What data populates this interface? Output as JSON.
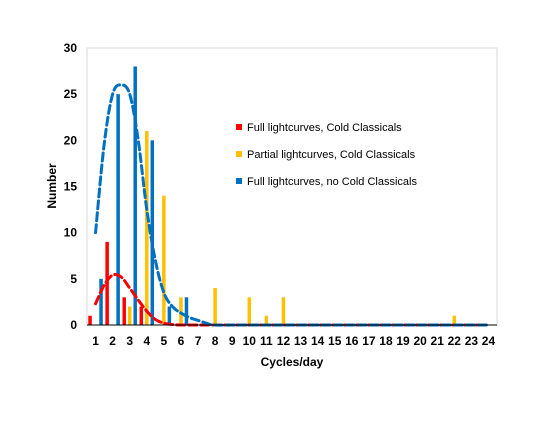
{
  "chart_data": {
    "type": "bar",
    "title": "",
    "xlabel": "Cycles/day",
    "ylabel": "Number",
    "ylim": [
      0,
      30
    ],
    "yticks": [
      0,
      5,
      10,
      15,
      20,
      25,
      30
    ],
    "categories": [
      "1",
      "2",
      "3",
      "4",
      "5",
      "6",
      "7",
      "8",
      "9",
      "10",
      "11",
      "12",
      "13",
      "14",
      "15",
      "16",
      "17",
      "18",
      "19",
      "20",
      "21",
      "22",
      "23",
      "24"
    ],
    "grid": false,
    "legend_position": "center-right",
    "series": [
      {
        "name": "Full lightcurves, Cold Classicals",
        "color": "#ff0000",
        "values": [
          1,
          9,
          3,
          2,
          0,
          0,
          0,
          0,
          0,
          0,
          0,
          0,
          0,
          0,
          0,
          0,
          0,
          0,
          0,
          0,
          0,
          0,
          0,
          0
        ]
      },
      {
        "name": "Partial lightcurves, Cold Classicals",
        "color": "#ffc000",
        "values": [
          0,
          0,
          2,
          21,
          14,
          3,
          0,
          4,
          0,
          3,
          1,
          3,
          0,
          0,
          0,
          0,
          0,
          0,
          0,
          0,
          0,
          1,
          0,
          0
        ]
      },
      {
        "name": "Full lightcurves, no Cold Classicals",
        "color": "#0070c0",
        "values": [
          5,
          25,
          28,
          20,
          2,
          3,
          0,
          0,
          0,
          0,
          0,
          0,
          0,
          0,
          0,
          0,
          0,
          0,
          0,
          0,
          0,
          0,
          0,
          0
        ]
      }
    ],
    "fit_curves": [
      {
        "color": "#ff0000",
        "style": "dashed",
        "x": [
          1.0,
          1.5,
          2.0,
          2.5,
          3.0,
          3.5,
          4.0,
          4.5,
          5.0,
          5.5,
          6.0,
          7.0,
          8.0,
          10.0,
          15.0,
          20.0,
          24.0
        ],
        "y": [
          2.3,
          4.3,
          5.4,
          5.2,
          4.0,
          2.7,
          1.5,
          0.6,
          0.2,
          0.05,
          0,
          0,
          0,
          0,
          0,
          0,
          0
        ]
      },
      {
        "color": "#0070c0",
        "style": "dashed",
        "x": [
          1.0,
          1.5,
          2.0,
          2.5,
          3.0,
          3.5,
          4.0,
          4.5,
          5.0,
          5.5,
          6.0,
          6.5,
          7.0,
          7.5,
          8.0,
          10.0,
          15.0,
          20.0,
          24.0
        ],
        "y": [
          10,
          19.5,
          25,
          26,
          25,
          20,
          12.5,
          7,
          3.5,
          2,
          1.3,
          0.8,
          0.5,
          0.2,
          0,
          0,
          0,
          0,
          0
        ]
      }
    ]
  }
}
